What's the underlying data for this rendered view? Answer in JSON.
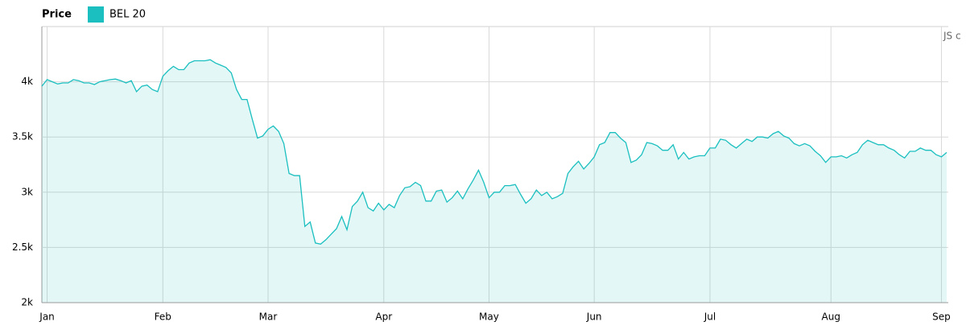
{
  "chart_data": {
    "type": "area",
    "legend_title": "Price",
    "credit": "JS c",
    "grid": true,
    "ylim": [
      2000,
      4500
    ],
    "yticks": [
      {
        "value": 2000,
        "label": "2k"
      },
      {
        "value": 2500,
        "label": "2.5k"
      },
      {
        "value": 3000,
        "label": "3k"
      },
      {
        "value": 3500,
        "label": "3.5k"
      },
      {
        "value": 4000,
        "label": "4k"
      }
    ],
    "categories": [
      null,
      "Jan",
      null,
      null,
      null,
      null,
      null,
      null,
      null,
      null,
      null,
      null,
      null,
      null,
      null,
      null,
      null,
      null,
      null,
      null,
      null,
      null,
      null,
      "Feb",
      null,
      null,
      null,
      null,
      null,
      null,
      null,
      null,
      null,
      null,
      null,
      null,
      null,
      null,
      null,
      null,
      null,
      null,
      null,
      "Mar",
      null,
      null,
      null,
      null,
      null,
      null,
      null,
      null,
      null,
      null,
      null,
      null,
      null,
      null,
      null,
      null,
      null,
      null,
      null,
      null,
      null,
      "Apr",
      null,
      null,
      null,
      null,
      null,
      null,
      null,
      null,
      null,
      null,
      null,
      null,
      null,
      null,
      null,
      null,
      null,
      null,
      null,
      "May",
      null,
      null,
      null,
      null,
      null,
      null,
      null,
      null,
      null,
      null,
      null,
      null,
      null,
      null,
      null,
      null,
      null,
      null,
      null,
      "Jun",
      null,
      null,
      null,
      null,
      null,
      null,
      null,
      null,
      null,
      null,
      null,
      null,
      null,
      null,
      null,
      null,
      null,
      null,
      null,
      null,
      null,
      "Jul",
      null,
      null,
      null,
      null,
      null,
      null,
      null,
      null,
      null,
      null,
      null,
      null,
      null,
      null,
      null,
      null,
      null,
      null,
      null,
      null,
      null,
      null,
      "Aug",
      null,
      null,
      null,
      null,
      null,
      null,
      null,
      null,
      null,
      null,
      null,
      null,
      null,
      null,
      null,
      null,
      null,
      null,
      null,
      null,
      "Sep",
      null
    ],
    "series": [
      {
        "name": "BEL 20",
        "color": "#1bbfbf",
        "values": [
          3960,
          4020,
          4000,
          3980,
          3990,
          3990,
          4020,
          4010,
          3990,
          3990,
          3975,
          4000,
          4010,
          4020,
          4025,
          4010,
          3990,
          4010,
          3910,
          3960,
          3970,
          3930,
          3910,
          4050,
          4100,
          4140,
          4110,
          4110,
          4170,
          4190,
          4190,
          4190,
          4200,
          4170,
          4150,
          4130,
          4080,
          3930,
          3840,
          3840,
          3660,
          3490,
          3510,
          3570,
          3600,
          3550,
          3440,
          3170,
          3150,
          3150,
          2690,
          2730,
          2540,
          2530,
          2570,
          2620,
          2670,
          2780,
          2660,
          2870,
          2920,
          3000,
          2860,
          2830,
          2900,
          2840,
          2890,
          2860,
          2970,
          3040,
          3050,
          3090,
          3060,
          2920,
          2920,
          3010,
          3020,
          2910,
          2950,
          3010,
          2940,
          3030,
          3110,
          3200,
          3090,
          2950,
          3000,
          3000,
          3060,
          3060,
          3070,
          2980,
          2900,
          2940,
          3020,
          2970,
          3000,
          2940,
          2960,
          2990,
          3170,
          3230,
          3280,
          3210,
          3260,
          3320,
          3430,
          3450,
          3540,
          3540,
          3490,
          3450,
          3270,
          3290,
          3340,
          3450,
          3440,
          3420,
          3380,
          3380,
          3430,
          3300,
          3360,
          3300,
          3320,
          3330,
          3330,
          3400,
          3400,
          3480,
          3470,
          3430,
          3400,
          3440,
          3480,
          3460,
          3500,
          3500,
          3490,
          3530,
          3550,
          3510,
          3490,
          3440,
          3420,
          3440,
          3420,
          3370,
          3330,
          3270,
          3320,
          3320,
          3330,
          3310,
          3340,
          3360,
          3430,
          3470,
          3450,
          3430,
          3430,
          3400,
          3380,
          3340,
          3310,
          3370,
          3370,
          3400,
          3380,
          3380,
          3340,
          3320,
          3360
        ]
      }
    ]
  }
}
